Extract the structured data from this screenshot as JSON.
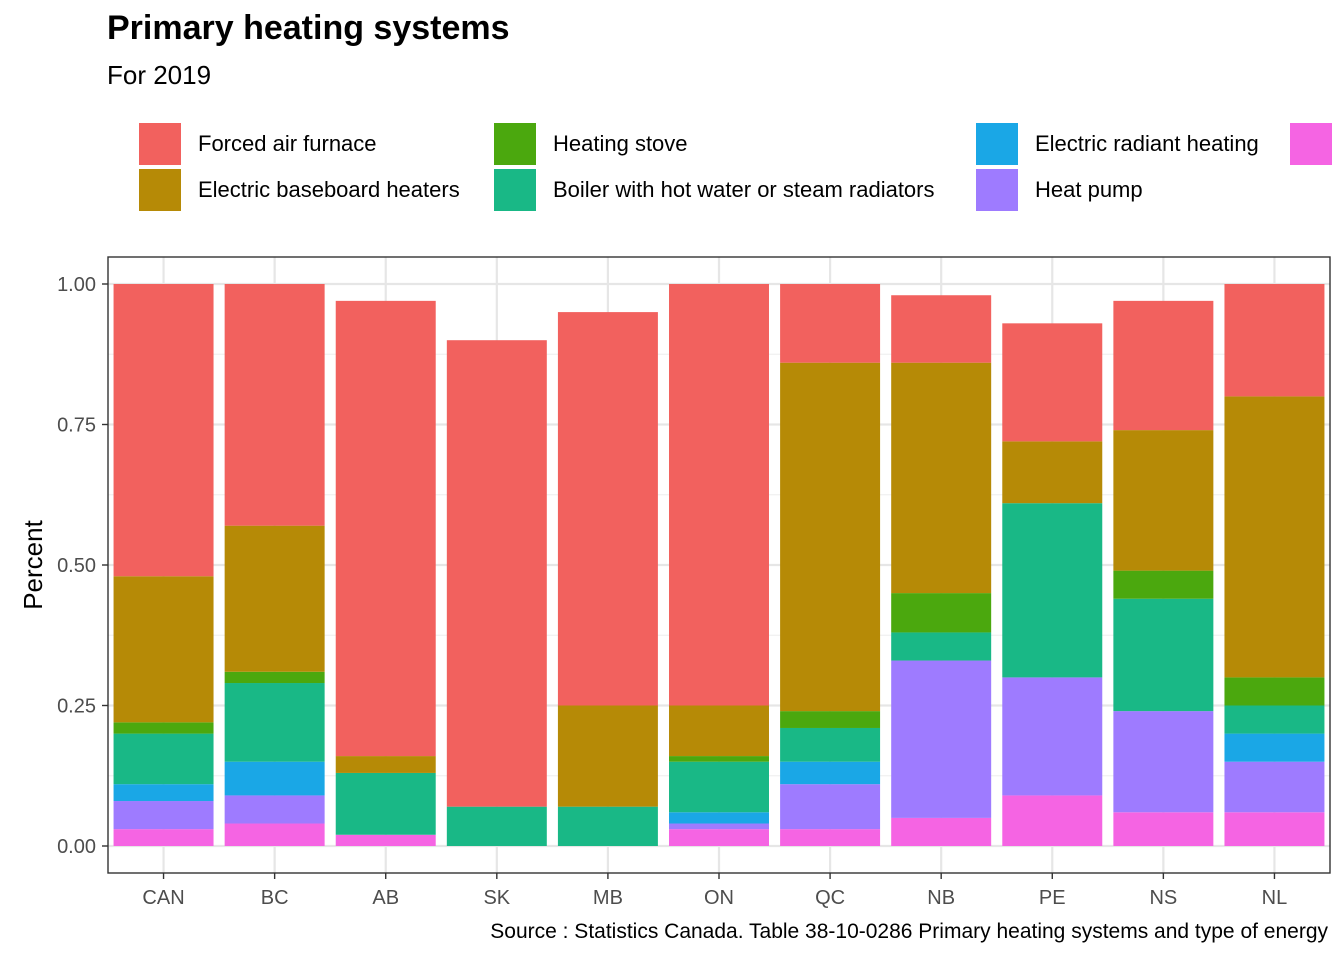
{
  "chart_data": {
    "type": "bar",
    "stacked": true,
    "title": "Primary heating systems",
    "subtitle": "For 2019",
    "xlabel": "",
    "ylabel": "Percent",
    "caption": "Source : Statistics Canada. Table 38-10-0286 Primary heating systems and type of energy",
    "ylim": [
      0,
      1
    ],
    "yticks": [
      "0.00",
      "0.25",
      "0.50",
      "0.75",
      "1.00"
    ],
    "grid": true,
    "legend_position": "top",
    "categories": [
      "CAN",
      "BC",
      "AB",
      "SK",
      "MB",
      "ON",
      "QC",
      "NB",
      "PE",
      "NS",
      "NL"
    ],
    "series": [
      {
        "name": "",
        "color": "#F564E3",
        "values": [
          0.03,
          0.04,
          0.02,
          0.0,
          0.0,
          0.03,
          0.03,
          0.05,
          0.09,
          0.06,
          0.06
        ]
      },
      {
        "name": "Heat pump",
        "color": "#9E7BFF",
        "values": [
          0.05,
          0.05,
          0.0,
          0.0,
          0.0,
          0.01,
          0.08,
          0.28,
          0.21,
          0.18,
          0.09
        ]
      },
      {
        "name": "Electric radiant heating",
        "color": "#1AA7E6",
        "values": [
          0.03,
          0.06,
          0.0,
          0.0,
          0.0,
          0.02,
          0.04,
          0.0,
          0.0,
          0.0,
          0.05
        ]
      },
      {
        "name": "Boiler with hot water or steam radiators",
        "color": "#19B886",
        "values": [
          0.09,
          0.14,
          0.11,
          0.07,
          0.07,
          0.09,
          0.06,
          0.05,
          0.31,
          0.2,
          0.05
        ]
      },
      {
        "name": "Heating stove",
        "color": "#4BA80E",
        "values": [
          0.02,
          0.02,
          0.0,
          0.0,
          0.0,
          0.01,
          0.03,
          0.07,
          0.0,
          0.05,
          0.05
        ]
      },
      {
        "name": "Electric baseboard heaters",
        "color": "#B68A06",
        "values": [
          0.26,
          0.26,
          0.03,
          0.0,
          0.18,
          0.09,
          0.62,
          0.41,
          0.11,
          0.25,
          0.5
        ]
      },
      {
        "name": "Forced air furnace",
        "color": "#F2615E",
        "values": [
          0.52,
          0.43,
          0.81,
          0.83,
          0.7,
          0.75,
          0.14,
          0.12,
          0.21,
          0.23,
          0.2
        ]
      }
    ]
  },
  "legend": {
    "items": [
      {
        "label": "Forced air furnace",
        "color": "#F2615E"
      },
      {
        "label": "Electric baseboard heaters",
        "color": "#B68A06"
      },
      {
        "label": "Heating stove",
        "color": "#4BA80E"
      },
      {
        "label": "Boiler with hot water or steam radiators",
        "color": "#19B886"
      },
      {
        "label": "Electric radiant heating",
        "color": "#1AA7E6"
      },
      {
        "label": "Heat pump",
        "color": "#9E7BFF"
      },
      {
        "label": "",
        "color": "#F564E3"
      }
    ]
  }
}
